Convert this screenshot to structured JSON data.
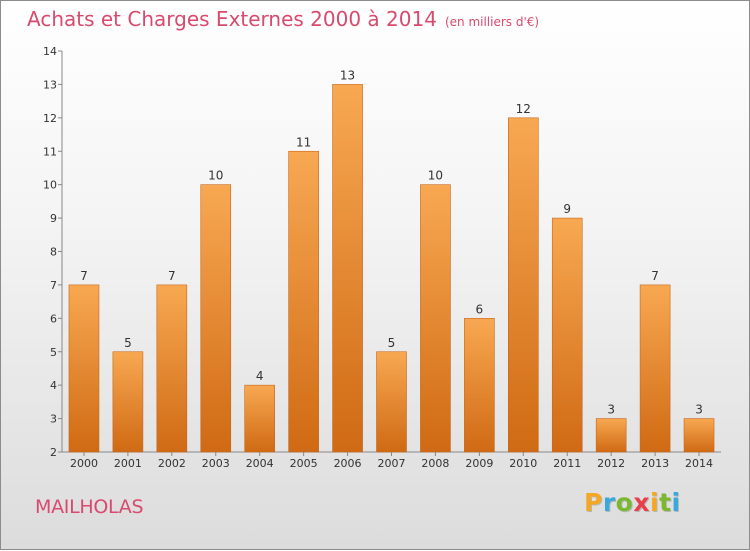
{
  "header": {
    "title": "Achats et Charges Externes 2000 à 2014",
    "unit": "(en milliers d'€)"
  },
  "footer": {
    "place": "MAILHOLAS",
    "logo": [
      "P",
      "r",
      "o",
      "x",
      "i",
      "t",
      "i"
    ],
    "logo_colors": [
      "#f5a623",
      "#3aa8dc",
      "#7cb82f",
      "#e8404a",
      "#f5a623",
      "#7cb82f",
      "#3aa8dc"
    ]
  },
  "chart_data": {
    "type": "bar",
    "title": "Achats et Charges Externes 2000 à 2014",
    "subtitle": "(en milliers d'€)",
    "categories": [
      "2000",
      "2001",
      "2002",
      "2003",
      "2004",
      "2005",
      "2006",
      "2007",
      "2008",
      "2009",
      "2010",
      "2011",
      "2012",
      "2013",
      "2014"
    ],
    "values": [
      7,
      5,
      7,
      10,
      4,
      11,
      13,
      5,
      10,
      6,
      12,
      9,
      3,
      7,
      3
    ],
    "yticks": [
      2,
      3,
      4,
      5,
      6,
      7,
      8,
      9,
      10,
      11,
      12,
      13,
      14
    ],
    "ylim": [
      2,
      14
    ],
    "grid": false,
    "legend": "none",
    "bar_color_top": "#f8a852",
    "bar_color_bottom": "#d06a14",
    "accent_color": "#d84a6e"
  }
}
